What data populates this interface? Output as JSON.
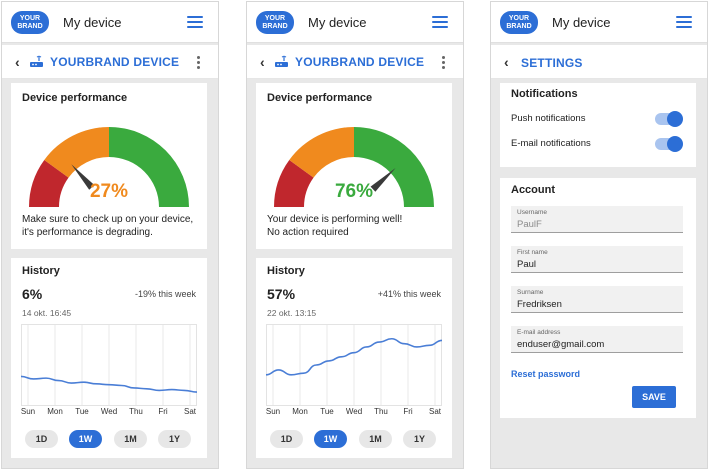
{
  "app": {
    "logo_line1": "YOUR",
    "logo_line2": "BRAND",
    "title": "My device"
  },
  "device": {
    "title": "YOURBRAND DEVICE"
  },
  "performance": {
    "title": "Device performance"
  },
  "history": {
    "title": "History"
  },
  "days": [
    "Sun",
    "Mon",
    "Tue",
    "Wed",
    "Thu",
    "Fri",
    "Sat"
  ],
  "ranges": [
    "1D",
    "1W",
    "1M",
    "1Y"
  ],
  "active_range": "1W",
  "screens": [
    {
      "gauge_value": 27,
      "gauge_percent_text": "27%",
      "gauge_color": "#f08a1e",
      "desc_line1": "Make sure to check up on your device,",
      "desc_line2": "it's performance is degrading.",
      "history_value": "6%",
      "history_change": "-19% this week",
      "history_date": "14 okt. 16:45",
      "series": [
        0.36,
        0.33,
        0.34,
        0.31,
        0.28,
        0.29,
        0.27,
        0.26,
        0.25,
        0.22,
        0.21,
        0.19,
        0.2,
        0.19,
        0.17
      ],
      "marker_day": 6.7
    },
    {
      "gauge_value": 76,
      "gauge_percent_text": "76%",
      "gauge_color": "#3aaa3e",
      "desc_line1": "Your device is performing well!",
      "desc_line2": "No action required",
      "history_value": "57%",
      "history_change": "+41% this week",
      "history_date": "22 okt. 13:15",
      "series": [
        0.38,
        0.44,
        0.38,
        0.4,
        0.5,
        0.55,
        0.6,
        0.65,
        0.72,
        0.78,
        0.82,
        0.76,
        0.72,
        0.74,
        0.8
      ],
      "marker_day": 6.4
    }
  ],
  "colors": {
    "accent": "#2c6ed6",
    "gauge_red": "#c0272d",
    "gauge_orange": "#f08a1e",
    "gauge_green": "#3aaa3e"
  },
  "settings": {
    "title": "SETTINGS",
    "notifications": {
      "title": "Notifications",
      "push": {
        "label": "Push notifications",
        "on": true
      },
      "email": {
        "label": "E-mail notifications",
        "on": true
      }
    },
    "account": {
      "title": "Account",
      "username": {
        "label": "Username",
        "value": "PaulF"
      },
      "firstname": {
        "label": "First name",
        "value": "Paul"
      },
      "surname": {
        "label": "Surname",
        "value": "Fredriksen"
      },
      "email": {
        "label": "E-mail address",
        "value": "enduser@gmail.com"
      },
      "reset_label": "Reset password",
      "save_label": "SAVE"
    }
  }
}
